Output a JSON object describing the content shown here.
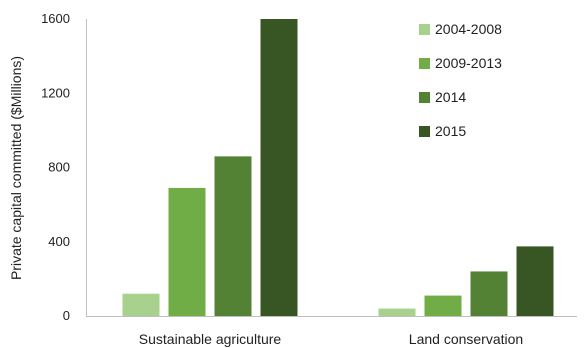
{
  "chart_data": {
    "type": "bar",
    "title": "",
    "xlabel": "",
    "ylabel": "Private capital committed ($Millions)",
    "ylim": [
      0,
      1600
    ],
    "yticks": [
      0,
      400,
      800,
      1200,
      1600
    ],
    "categories": [
      "Sustainable agriculture",
      "Land conservation"
    ],
    "series": [
      {
        "name": "2004-2008",
        "color": "#a9d18e",
        "values": [
          120,
          40
        ]
      },
      {
        "name": "2009-2013",
        "color": "#70ad47",
        "values": [
          690,
          110
        ]
      },
      {
        "name": "2014",
        "color": "#548235",
        "values": [
          860,
          240
        ]
      },
      {
        "name": "2015",
        "color": "#375623",
        "values": [
          1600,
          375
        ]
      }
    ],
    "grid": false,
    "legend": "top-right"
  }
}
